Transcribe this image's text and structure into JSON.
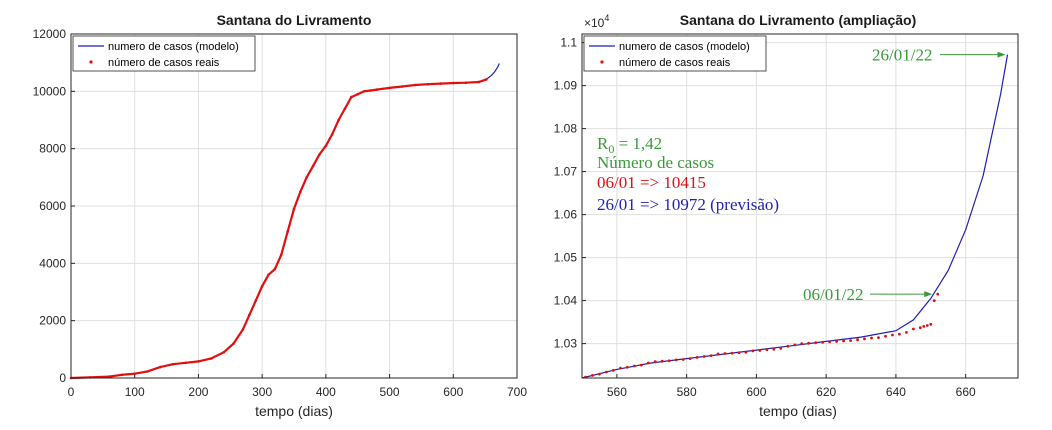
{
  "chart_data": [
    {
      "type": "line",
      "title": "Santana do Livramento",
      "xlabel": "tempo (dias)",
      "ylabel": "",
      "xlim": [
        0,
        700
      ],
      "ylim": [
        0,
        12000
      ],
      "xticks": [
        "0",
        "100",
        "200",
        "300",
        "400",
        "500",
        "600",
        "700"
      ],
      "yticks": [
        "0",
        "2000",
        "4000",
        "6000",
        "8000",
        "10000",
        "12000"
      ],
      "grid": true,
      "legend_position": "top-left",
      "series": [
        {
          "name": "numero de casos (modelo)",
          "color": "#1f1fb4",
          "style": "line",
          "x": [
            640,
            645,
            650,
            655,
            660,
            665,
            670,
            672
          ],
          "y": [
            10340,
            10360,
            10405,
            10470,
            10560,
            10680,
            10860,
            10972
          ]
        },
        {
          "name": "número de casos reais",
          "color": "#e01010",
          "style": "dots",
          "x": [
            0,
            30,
            60,
            80,
            100,
            120,
            140,
            160,
            180,
            200,
            220,
            240,
            255,
            270,
            280,
            290,
            300,
            310,
            320,
            330,
            340,
            350,
            360,
            370,
            380,
            390,
            400,
            410,
            420,
            430,
            440,
            450,
            460,
            470,
            480,
            500,
            520,
            540,
            560,
            580,
            600,
            620,
            640,
            652
          ],
          "y": [
            0,
            20,
            50,
            110,
            150,
            230,
            380,
            480,
            530,
            580,
            680,
            900,
            1200,
            1700,
            2200,
            2700,
            3200,
            3600,
            3800,
            4300,
            5100,
            5900,
            6500,
            7000,
            7400,
            7800,
            8100,
            8500,
            9000,
            9400,
            9800,
            9900,
            10000,
            10030,
            10060,
            10120,
            10170,
            10220,
            10250,
            10270,
            10290,
            10300,
            10325,
            10415
          ]
        }
      ]
    },
    {
      "type": "line",
      "title": "Santana do Livramento (ampliação)",
      "xlabel": "tempo (dias)",
      "ylabel": "",
      "y_exponent_label": "×10",
      "y_exponent": "4",
      "xlim": [
        550,
        675
      ],
      "ylim": [
        10220,
        11020
      ],
      "xticks": [
        "560",
        "580",
        "600",
        "620",
        "640",
        "660"
      ],
      "yticks": [
        "1.03",
        "1.04",
        "1.05",
        "1.06",
        "1.07",
        "1.08",
        "1.09",
        "1.1"
      ],
      "grid": true,
      "legend_position": "top-left",
      "series": [
        {
          "name": "numero de casos (modelo)",
          "color": "#1f1fb4",
          "style": "line",
          "x": [
            550,
            560,
            570,
            580,
            590,
            600,
            610,
            620,
            630,
            640,
            645,
            650,
            655,
            660,
            665,
            670,
            672
          ],
          "y": [
            10220,
            10240,
            10255,
            10265,
            10275,
            10285,
            10295,
            10305,
            10315,
            10330,
            10355,
            10405,
            10470,
            10565,
            10690,
            10880,
            10972
          ]
        },
        {
          "name": "número de casos reais",
          "color": "#e01010",
          "style": "dots",
          "x": [
            551,
            553,
            555,
            557,
            559,
            561,
            563,
            565,
            567,
            569,
            571,
            573,
            575,
            577,
            579,
            581,
            583,
            585,
            587,
            589,
            591,
            593,
            595,
            597,
            599,
            601,
            603,
            605,
            607,
            609,
            611,
            613,
            615,
            617,
            619,
            621,
            623,
            625,
            627,
            629,
            631,
            633,
            635,
            637,
            639,
            641,
            643,
            645,
            647,
            648,
            649,
            650,
            651,
            652
          ],
          "y": [
            10222,
            10226,
            10229,
            10234,
            10238,
            10243,
            10245,
            10248,
            10250,
            10255,
            10258,
            10259,
            10260,
            10262,
            10263,
            10265,
            10268,
            10270,
            10272,
            10276,
            10277,
            10278,
            10279,
            10280,
            10283,
            10284,
            10286,
            10287,
            10289,
            10294,
            10297,
            10300,
            10301,
            10302,
            10303,
            10304,
            10305,
            10306,
            10307,
            10309,
            10311,
            10313,
            10314,
            10317,
            10320,
            10322,
            10326,
            10334,
            10337,
            10340,
            10342,
            10345,
            10400,
            10415
          ]
        }
      ],
      "annotations": [
        {
          "text": "26/01/22",
          "color": "#3a9a3a",
          "target": [
            672,
            10972
          ]
        },
        {
          "text": "06/01/22",
          "color": "#3a9a3a",
          "target": [
            651,
            10415
          ]
        }
      ],
      "info_box": {
        "r0_symbol": "R",
        "r0_sub": "0",
        "r0_value": " = 1,42",
        "line2": "Número de casos",
        "line3": "06/01 => 10415",
        "line4": "26/01 => 10972 (previsão)",
        "color_green": "#3a9a3a",
        "color_red": "#e01010",
        "color_blue": "#1f1fb4"
      }
    }
  ]
}
